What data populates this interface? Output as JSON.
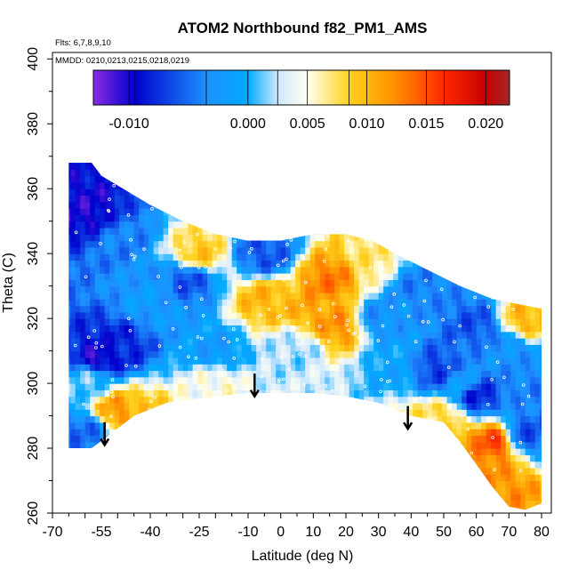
{
  "chart_data": {
    "type": "heatmap",
    "title": "ATOM2 Northbound f82_PM1_AMS",
    "annotations": [
      "Flts: 6,7,8,9,10",
      "MMDD: 0210,0213,0215,0218,0219"
    ],
    "xlabel": "Latitude (deg N)",
    "ylabel": "Theta (C)",
    "xlim": [
      -70,
      83
    ],
    "ylim": [
      260,
      402
    ],
    "x_ticks": [
      -70,
      -55,
      -40,
      -25,
      -10,
      0,
      10,
      20,
      30,
      40,
      50,
      60,
      70,
      80
    ],
    "y_ticks": [
      260,
      280,
      300,
      320,
      340,
      360,
      380,
      400
    ],
    "colorbar": {
      "range": [
        -0.013,
        0.022
      ],
      "ticks": [
        -0.01,
        0.0,
        0.005,
        0.01,
        0.015,
        0.02
      ],
      "tick_labels": [
        "-0.010",
        "0.000",
        "0.005",
        "0.010",
        "0.015",
        "0.020"
      ],
      "stops": [
        {
          "value": -0.013,
          "color": "#8a2be2"
        },
        {
          "value": -0.0095,
          "color": "#0000cd"
        },
        {
          "value": -0.0035,
          "color": "#1e90ff"
        },
        {
          "value": 0.0,
          "color": "#00aaff"
        },
        {
          "value": 0.0025,
          "color": "#cfe8ff"
        },
        {
          "value": 0.005,
          "color": "#fffff0"
        },
        {
          "value": 0.0085,
          "color": "#ffd21e"
        },
        {
          "value": 0.012,
          "color": "#ff9600"
        },
        {
          "value": 0.0165,
          "color": "#ff2800"
        },
        {
          "value": 0.02,
          "color": "#c80000"
        },
        {
          "value": 0.022,
          "color": "#a02828"
        }
      ]
    },
    "domain_boundary": {
      "top": [
        [
          -58,
          368
        ],
        [
          -55,
          364
        ],
        [
          -50,
          361
        ],
        [
          -40,
          355
        ],
        [
          -30,
          350
        ],
        [
          -20,
          346
        ],
        [
          -10,
          344
        ],
        [
          0,
          344
        ],
        [
          10,
          346
        ],
        [
          20,
          346
        ],
        [
          28,
          344
        ],
        [
          35,
          340
        ],
        [
          45,
          335
        ],
        [
          55,
          330
        ],
        [
          65,
          326
        ],
        [
          70,
          325
        ],
        [
          80,
          323
        ]
      ],
      "bottom": [
        [
          -58,
          280
        ],
        [
          -54,
          283
        ],
        [
          -45,
          290
        ],
        [
          -35,
          294
        ],
        [
          -20,
          296
        ],
        [
          -10,
          297
        ],
        [
          0,
          297
        ],
        [
          10,
          297
        ],
        [
          20,
          296
        ],
        [
          30,
          294
        ],
        [
          40,
          290
        ],
        [
          45,
          289
        ],
        [
          50,
          288
        ],
        [
          55,
          282
        ],
        [
          60,
          275
        ],
        [
          65,
          268
        ],
        [
          70,
          262
        ],
        [
          75,
          261
        ],
        [
          80,
          263
        ]
      ],
      "left_edge_lat": -65
    },
    "features": [
      {
        "lat": -58,
        "theta": 352,
        "value": -0.01
      },
      {
        "lat": -50,
        "theta": 345,
        "value": -0.004
      },
      {
        "lat": -55,
        "theta": 308,
        "value": -0.01
      },
      {
        "lat": -50,
        "theta": 312,
        "value": -0.008
      },
      {
        "lat": -50,
        "theta": 292,
        "value": 0.012
      },
      {
        "lat": -43,
        "theta": 290,
        "value": 0.009
      },
      {
        "lat": -60,
        "theta": 285,
        "value": -0.005
      },
      {
        "lat": -58,
        "theta": 300,
        "value": 0.001
      },
      {
        "lat": -40,
        "theta": 325,
        "value": -0.002
      },
      {
        "lat": -28,
        "theta": 332,
        "value": -0.006
      },
      {
        "lat": -25,
        "theta": 340,
        "value": 0.009
      },
      {
        "lat": -20,
        "theta": 310,
        "value": -0.002
      },
      {
        "lat": -20,
        "theta": 300,
        "value": 0.005
      },
      {
        "lat": -5,
        "theta": 326,
        "value": 0.01
      },
      {
        "lat": -5,
        "theta": 340,
        "value": -0.006
      },
      {
        "lat": 5,
        "theta": 310,
        "value": 0.002
      },
      {
        "lat": 15,
        "theta": 332,
        "value": 0.013
      },
      {
        "lat": 12,
        "theta": 322,
        "value": 0.011
      },
      {
        "lat": 18,
        "theta": 318,
        "value": 0.012
      },
      {
        "lat": 28,
        "theta": 338,
        "value": 0.007
      },
      {
        "lat": 30,
        "theta": 320,
        "value": -0.003
      },
      {
        "lat": 35,
        "theta": 305,
        "value": -0.001
      },
      {
        "lat": 42,
        "theta": 330,
        "value": -0.004
      },
      {
        "lat": 48,
        "theta": 304,
        "value": -0.007
      },
      {
        "lat": 55,
        "theta": 300,
        "value": -0.002
      },
      {
        "lat": 60,
        "theta": 296,
        "value": -0.008
      },
      {
        "lat": 50,
        "theta": 290,
        "value": 0.008
      },
      {
        "lat": 42,
        "theta": 288,
        "value": 0.007
      },
      {
        "lat": 65,
        "theta": 282,
        "value": 0.015
      },
      {
        "lat": 58,
        "theta": 278,
        "value": 0.012
      },
      {
        "lat": 68,
        "theta": 268,
        "value": 0.012
      },
      {
        "lat": 75,
        "theta": 285,
        "value": -0.006
      },
      {
        "lat": 75,
        "theta": 320,
        "value": 0.01
      },
      {
        "lat": 70,
        "theta": 310,
        "value": -0.003
      },
      {
        "lat": 60,
        "theta": 318,
        "value": -0.006
      },
      {
        "lat": 80,
        "theta": 300,
        "value": -0.004
      }
    ],
    "arrows": [
      {
        "lat": -54,
        "theta_from": 288,
        "theta_to": 281
      },
      {
        "lat": -8,
        "theta_from": 303,
        "theta_to": 296
      },
      {
        "lat": 39,
        "theta_from": 293,
        "theta_to": 286
      }
    ]
  }
}
